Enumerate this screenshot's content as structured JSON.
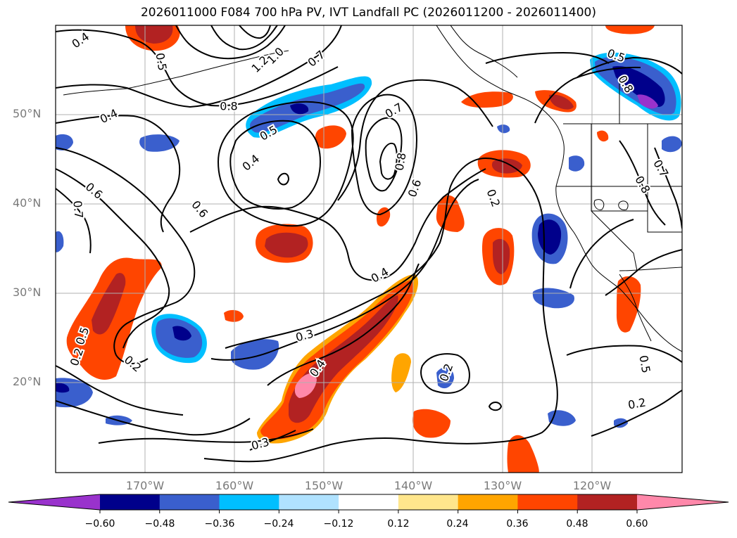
{
  "title": "2026011000 F084 700 hPa PV, IVT Landfall PC (2026011200 - 2026011400)",
  "axes": {
    "lat_labels": [
      "50°N",
      "40°N",
      "30°N",
      "20°N"
    ],
    "lon_labels": [
      "170°W",
      "160°W",
      "150°W",
      "140°W",
      "130°W",
      "120°W"
    ]
  },
  "contour_labels": [
    "0.4",
    "0.5",
    "1.2",
    "1.0",
    "0.7",
    "0.8",
    "0.4",
    "0.5",
    "0.4",
    "0.7",
    "0.8",
    "0.6",
    "0.2",
    "0.6",
    "0.7",
    "0.6",
    "0.4",
    "0.3",
    "0.2",
    "0.5",
    "0.2",
    "0.4",
    "0.2",
    "0.3",
    "0.5",
    "0.8",
    "0.7",
    "0.8",
    "0.5",
    "0.2"
  ],
  "colorbar": {
    "ticks": [
      "−0.60",
      "−0.48",
      "−0.36",
      "−0.24",
      "−0.12",
      "0.12",
      "0.24",
      "0.36",
      "0.48",
      "0.60"
    ],
    "colors": [
      "#9932cc",
      "#00008b",
      "#3a5fcd",
      "#00bfff",
      "#b0e2ff",
      "#ffffff",
      "#ffe68c",
      "#ffa500",
      "#ff4500",
      "#b22222",
      "#ff88aa"
    ]
  }
}
